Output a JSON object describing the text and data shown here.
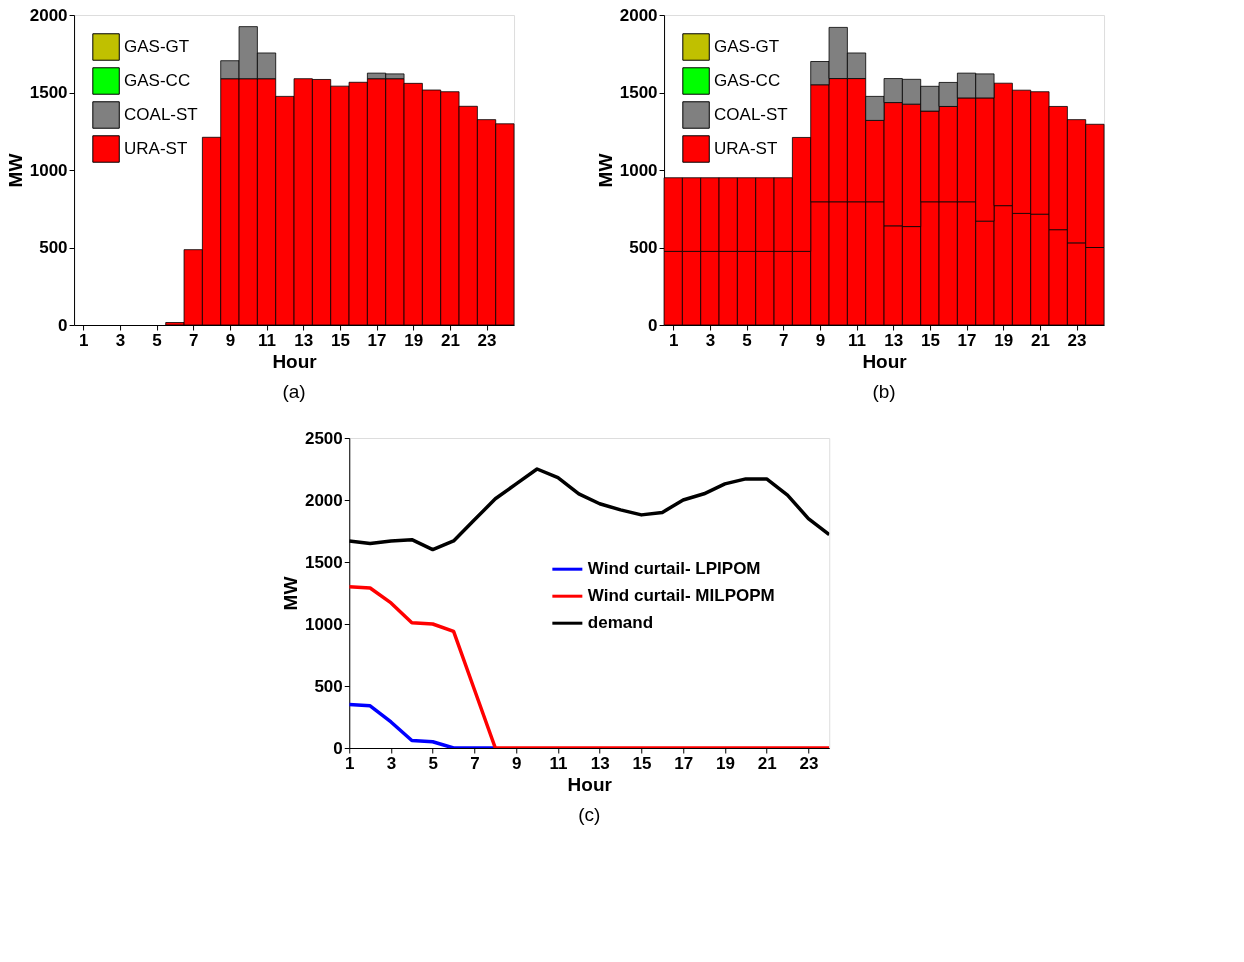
{
  "chart_data": [
    {
      "type": "bar",
      "stacked": true,
      "x": [
        1,
        2,
        3,
        4,
        5,
        6,
        7,
        8,
        9,
        10,
        11,
        12,
        13,
        14,
        15,
        16,
        17,
        18,
        19,
        20,
        21,
        22,
        23,
        24
      ],
      "xlim": [
        0.5,
        24.5
      ],
      "xticks": [
        1,
        3,
        5,
        7,
        9,
        11,
        13,
        15,
        17,
        19,
        21,
        23
      ],
      "ylim": [
        0,
        2000
      ],
      "yticks": [
        0,
        500,
        1000,
        1500,
        2000
      ],
      "xlabel": "Hour",
      "ylabel": "MW",
      "grid": false,
      "legend": "top left",
      "annotations": [
        "(a)"
      ],
      "series": [
        {
          "name": "URA-ST",
          "color": "#ff0000",
          "values": [
            0,
            0,
            0,
            0,
            0,
            16,
            486,
            1211,
            1589,
            1589,
            1589,
            1475,
            1589,
            1584,
            1541,
            1566,
            1589,
            1589,
            1559,
            1516,
            1505,
            1411,
            1325,
            1298
          ]
        },
        {
          "name": "COAL-ST",
          "color": "#808080",
          "values": [
            0,
            0,
            0,
            0,
            0,
            0,
            0,
            0,
            116,
            336,
            166,
            0,
            0,
            0,
            0,
            0,
            36,
            31,
            0,
            0,
            0,
            0,
            0,
            0
          ]
        },
        {
          "name": "GAS-CC",
          "color": "#00ff00",
          "values": [
            0,
            0,
            0,
            0,
            0,
            0,
            0,
            0,
            0,
            0,
            0,
            0,
            0,
            0,
            0,
            0,
            0,
            0,
            0,
            0,
            0,
            0,
            0,
            0
          ]
        },
        {
          "name": "GAS-GT",
          "color": "#c0c000",
          "values": [
            0,
            0,
            0,
            0,
            0,
            0,
            0,
            0,
            0,
            0,
            0,
            0,
            0,
            0,
            0,
            0,
            0,
            0,
            0,
            0,
            0,
            0,
            0,
            0
          ]
        }
      ]
    },
    {
      "type": "bar",
      "stacked": true,
      "x": [
        1,
        2,
        3,
        4,
        5,
        6,
        7,
        8,
        9,
        10,
        11,
        12,
        13,
        14,
        15,
        16,
        17,
        18,
        19,
        20,
        21,
        22,
        23,
        24
      ],
      "xlim": [
        0.5,
        24.5
      ],
      "xticks": [
        1,
        3,
        5,
        7,
        9,
        11,
        13,
        15,
        17,
        19,
        21,
        23
      ],
      "ylim": [
        0,
        2000
      ],
      "yticks": [
        0,
        500,
        1000,
        1500,
        2000
      ],
      "xlabel": "Hour",
      "ylabel": "MW",
      "grid": false,
      "legend": "top left",
      "annotations": [
        "(b)"
      ],
      "series": [
        {
          "name": "URA-ST",
          "color": "#ff0000",
          "values": [
            475,
            475,
            475,
            475,
            475,
            475,
            475,
            475,
            795,
            795,
            795,
            795,
            640,
            635,
            795,
            795,
            795,
            670,
            770,
            720,
            715,
            615,
            530,
            500
          ]
        },
        {
          "color": "#ff0000",
          "values": [
            475,
            475,
            475,
            475,
            475,
            475,
            475,
            735,
            755,
            795,
            795,
            525,
            795,
            790,
            585,
            615,
            670,
            795,
            790,
            795,
            790,
            795,
            795,
            795
          ]
        },
        {
          "name": "COAL-ST",
          "color": "#808080",
          "values": [
            0,
            0,
            0,
            0,
            0,
            0,
            0,
            0,
            150,
            330,
            165,
            155,
            155,
            160,
            160,
            155,
            160,
            155,
            0,
            0,
            0,
            0,
            0,
            0
          ]
        },
        {
          "name": "GAS-CC",
          "color": "#00ff00",
          "values": [
            0,
            0,
            0,
            0,
            0,
            0,
            0,
            0,
            0,
            0,
            0,
            0,
            0,
            0,
            0,
            0,
            0,
            0,
            0,
            0,
            0,
            0,
            0,
            0
          ]
        },
        {
          "name": "GAS-GT",
          "color": "#c0c000",
          "values": [
            0,
            0,
            0,
            0,
            0,
            0,
            0,
            0,
            0,
            0,
            0,
            0,
            0,
            0,
            0,
            0,
            0,
            0,
            0,
            0,
            0,
            0,
            0,
            0
          ]
        }
      ]
    },
    {
      "type": "line",
      "x": [
        1,
        2,
        3,
        4,
        5,
        6,
        7,
        8,
        9,
        10,
        11,
        12,
        13,
        14,
        15,
        16,
        17,
        18,
        19,
        20,
        21,
        22,
        23,
        24
      ],
      "xlim": [
        1,
        24
      ],
      "xticks": [
        1,
        3,
        5,
        7,
        9,
        11,
        13,
        15,
        17,
        19,
        21,
        23
      ],
      "ylim": [
        0,
        2500
      ],
      "yticks": [
        0,
        500,
        1000,
        1500,
        2000,
        2500
      ],
      "xlabel": "Hour",
      "ylabel": "MW",
      "grid": false,
      "legend": "right",
      "annotations": [
        "(c)"
      ],
      "series": [
        {
          "name": "Wind curtail- LPIPOM",
          "color": "#0000ff",
          "values": [
            350,
            340,
            210,
            60,
            50,
            0,
            0,
            0,
            null,
            null,
            null,
            null,
            null,
            null,
            null,
            null,
            null,
            null,
            null,
            null,
            null,
            null,
            null,
            null
          ]
        },
        {
          "name": "Wind curtail- MILPOPM",
          "color": "#ff0000",
          "values": [
            1300,
            1290,
            1170,
            1010,
            1000,
            940,
            470,
            0,
            0,
            0,
            0,
            0,
            0,
            0,
            0,
            0,
            0,
            0,
            0,
            0,
            0,
            0,
            0,
            0
          ]
        },
        {
          "name": "demand",
          "color": "#000000",
          "values": [
            1670,
            1650,
            1670,
            1680,
            1600,
            1670,
            1840,
            2010,
            2130,
            2250,
            2180,
            2050,
            1970,
            1920,
            1880,
            1900,
            2000,
            2050,
            2130,
            2170,
            2170,
            2040,
            1850,
            1720
          ]
        }
      ]
    }
  ]
}
